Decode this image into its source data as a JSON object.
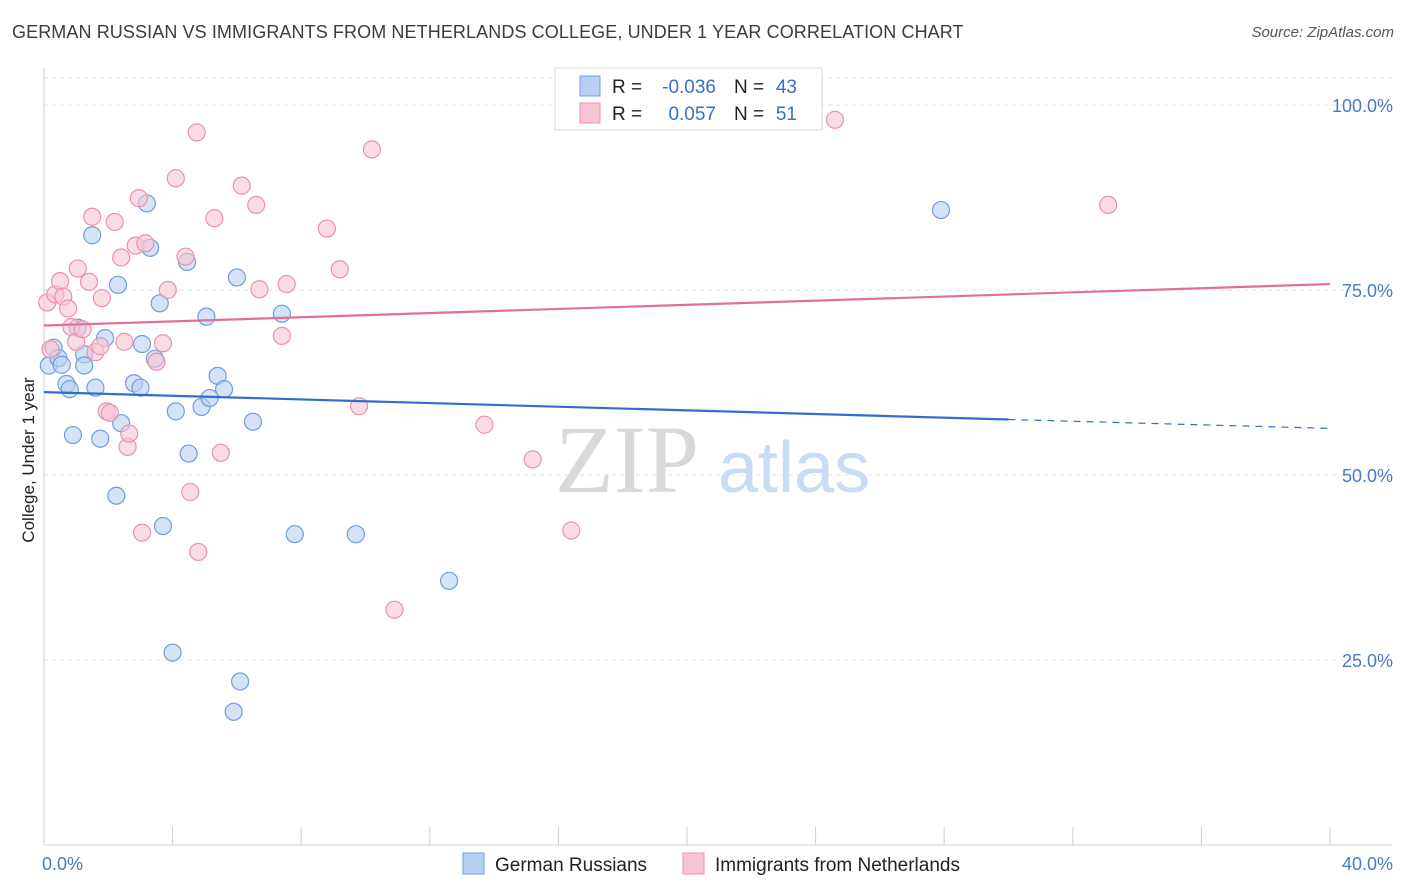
{
  "title": "GERMAN RUSSIAN VS IMMIGRANTS FROM NETHERLANDS COLLEGE, UNDER 1 YEAR CORRELATION CHART",
  "source": "Source: ZipAtlas.com",
  "watermark": {
    "zip": "ZIP",
    "atlas": "atlas"
  },
  "colors": {
    "blue_fill": "#b9d0f2",
    "blue_stroke": "#6f9de0",
    "blue_line": "#2f6fcc",
    "pink_fill": "#f6c4d4",
    "pink_stroke": "#e991ae",
    "pink_line": "#e07098",
    "axis_label": "#4a7ac7",
    "grid": "#e3e3e3"
  },
  "legend": {
    "series1": {
      "r_label": "R =",
      "r_value": "-0.036",
      "n_label": "N =",
      "n_value": "43"
    },
    "series2": {
      "r_label": "R =",
      "r_value": "0.057",
      "n_label": "N =",
      "n_value": "51"
    }
  },
  "chart_data": {
    "type": "scatter",
    "title": "GERMAN RUSSIAN VS IMMIGRANTS FROM NETHERLANDS COLLEGE, UNDER 1 YEAR CORRELATION CHART",
    "xlabel": "",
    "ylabel": "College, Under 1 year",
    "xlim": [
      0,
      40
    ],
    "ylim": [
      0,
      105
    ],
    "x_tick_labels": [
      {
        "value": 0,
        "label": "0.0%"
      },
      {
        "value": 40,
        "label": "40.0%"
      }
    ],
    "y_tick_labels": [
      {
        "value": 25,
        "label": "25.0%"
      },
      {
        "value": 50,
        "label": "50.0%"
      },
      {
        "value": 75,
        "label": "75.0%"
      },
      {
        "value": 100,
        "label": "100.0%"
      }
    ],
    "x_minor_ticks": [
      0,
      4,
      8,
      12,
      16,
      20,
      24,
      28,
      32,
      36,
      40
    ],
    "series": [
      {
        "name": "German Russians",
        "color": "#6f9de0",
        "trend": {
          "x0": 0,
          "y0": 61.2,
          "x1": 30,
          "y1": 57.5,
          "dash_to_x": 40,
          "dash_to_y": 56.3
        },
        "points": [
          [
            0.15,
            64.8
          ],
          [
            0.3,
            67.2
          ],
          [
            0.45,
            65.8
          ],
          [
            0.55,
            64.9
          ],
          [
            0.7,
            62.3
          ],
          [
            0.8,
            61.6
          ],
          [
            0.9,
            55.4
          ],
          [
            1.05,
            69.9
          ],
          [
            1.25,
            66.3
          ],
          [
            1.25,
            64.8
          ],
          [
            1.5,
            82.4
          ],
          [
            1.6,
            61.8
          ],
          [
            1.75,
            54.9
          ],
          [
            1.9,
            68.5
          ],
          [
            2.25,
            47.2
          ],
          [
            2.3,
            75.7
          ],
          [
            2.4,
            57.0
          ],
          [
            2.8,
            62.4
          ],
          [
            3.0,
            61.8
          ],
          [
            3.05,
            67.7
          ],
          [
            3.2,
            86.7
          ],
          [
            3.3,
            80.7
          ],
          [
            3.45,
            65.7
          ],
          [
            3.6,
            73.2
          ],
          [
            3.7,
            43.1
          ],
          [
            4.0,
            26.0
          ],
          [
            4.1,
            58.6
          ],
          [
            4.45,
            78.8
          ],
          [
            4.5,
            52.9
          ],
          [
            4.9,
            59.2
          ],
          [
            5.05,
            71.4
          ],
          [
            5.15,
            60.4
          ],
          [
            5.4,
            63.4
          ],
          [
            5.6,
            61.6
          ],
          [
            5.9,
            18.0
          ],
          [
            6.0,
            76.7
          ],
          [
            6.1,
            22.1
          ],
          [
            6.5,
            57.2
          ],
          [
            7.4,
            71.8
          ],
          [
            7.8,
            42.0
          ],
          [
            9.7,
            42.0
          ],
          [
            12.6,
            35.7
          ],
          [
            27.9,
            85.8
          ]
        ]
      },
      {
        "name": "Immigrants from Netherlands",
        "color": "#e991ae",
        "trend": {
          "x0": 0,
          "y0": 70.2,
          "x1": 40,
          "y1": 75.8
        },
        "points": [
          [
            0.1,
            73.3
          ],
          [
            0.2,
            67.0
          ],
          [
            0.35,
            74.4
          ],
          [
            0.5,
            76.2
          ],
          [
            0.6,
            74.1
          ],
          [
            0.75,
            72.5
          ],
          [
            0.85,
            70.0
          ],
          [
            1.0,
            68.0
          ],
          [
            1.05,
            77.9
          ],
          [
            1.2,
            69.7
          ],
          [
            1.4,
            76.1
          ],
          [
            1.5,
            84.9
          ],
          [
            1.6,
            66.6
          ],
          [
            1.75,
            67.4
          ],
          [
            1.8,
            73.9
          ],
          [
            1.95,
            58.6
          ],
          [
            2.05,
            58.4
          ],
          [
            2.2,
            84.2
          ],
          [
            2.4,
            79.4
          ],
          [
            2.5,
            68.0
          ],
          [
            2.6,
            53.8
          ],
          [
            2.65,
            55.6
          ],
          [
            2.85,
            81.0
          ],
          [
            2.95,
            87.4
          ],
          [
            3.05,
            42.2
          ],
          [
            3.15,
            81.3
          ],
          [
            3.5,
            65.3
          ],
          [
            3.7,
            67.8
          ],
          [
            3.85,
            75.0
          ],
          [
            4.1,
            90.1
          ],
          [
            4.4,
            79.5
          ],
          [
            4.55,
            47.7
          ],
          [
            4.75,
            96.3
          ],
          [
            4.8,
            39.6
          ],
          [
            5.3,
            84.7
          ],
          [
            5.5,
            53.0
          ],
          [
            6.15,
            89.1
          ],
          [
            6.6,
            86.5
          ],
          [
            6.7,
            75.1
          ],
          [
            7.4,
            68.8
          ],
          [
            7.55,
            75.8
          ],
          [
            8.8,
            83.3
          ],
          [
            9.2,
            77.8
          ],
          [
            9.8,
            59.3
          ],
          [
            10.2,
            94.0
          ],
          [
            10.9,
            31.8
          ],
          [
            13.7,
            56.8
          ],
          [
            15.2,
            52.1
          ],
          [
            16.4,
            42.5
          ],
          [
            24.6,
            98.0
          ],
          [
            33.1,
            86.5
          ]
        ]
      }
    ],
    "legend_position": "top-center"
  },
  "bottom_legend": [
    {
      "label": "German Russians"
    },
    {
      "label": "Immigrants from Netherlands"
    }
  ]
}
